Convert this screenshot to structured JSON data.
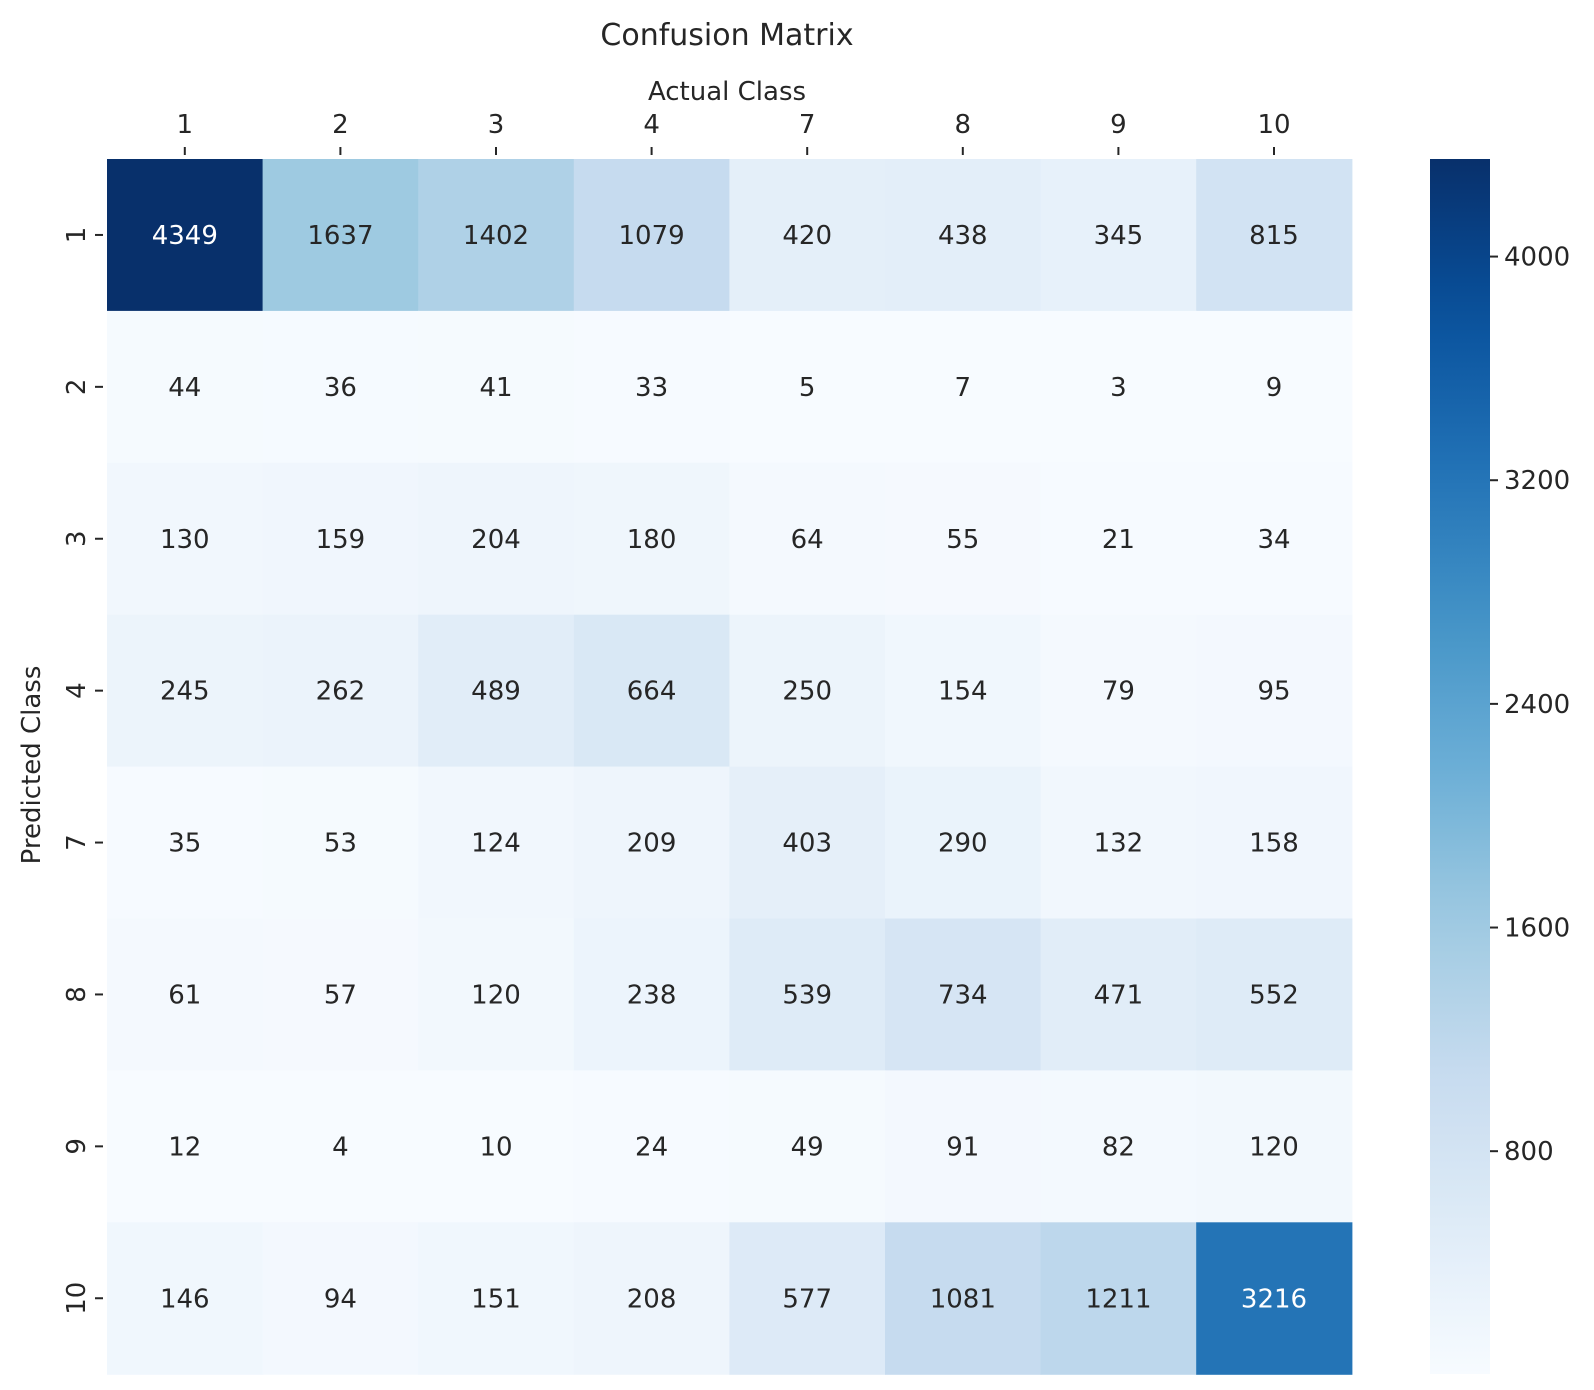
{
  "chart_data": {
    "type": "heatmap",
    "title": "Confusion Matrix",
    "xlabel": "Actual Class",
    "ylabel": "Predicted Class",
    "x_categories": [
      "1",
      "2",
      "3",
      "4",
      "7",
      "8",
      "9",
      "10"
    ],
    "y_categories": [
      "1",
      "2",
      "3",
      "4",
      "7",
      "8",
      "9",
      "10"
    ],
    "values": [
      [
        4349,
        1637,
        1402,
        1079,
        420,
        438,
        345,
        815
      ],
      [
        44,
        36,
        41,
        33,
        5,
        7,
        3,
        9
      ],
      [
        130,
        159,
        204,
        180,
        64,
        55,
        21,
        34
      ],
      [
        245,
        262,
        489,
        664,
        250,
        154,
        79,
        95
      ],
      [
        35,
        53,
        124,
        209,
        403,
        290,
        132,
        158
      ],
      [
        61,
        57,
        120,
        238,
        539,
        734,
        471,
        552
      ],
      [
        12,
        4,
        10,
        24,
        49,
        91,
        82,
        120
      ],
      [
        146,
        94,
        151,
        208,
        577,
        1081,
        1211,
        3216
      ]
    ],
    "colormap": "Blues",
    "colorbar": {
      "range": [
        3,
        4349
      ],
      "ticks": [
        800,
        1600,
        2400,
        3200,
        4000
      ],
      "tick_labels": [
        "800",
        "1600",
        "2400",
        "3200",
        "4000"
      ]
    },
    "x_axis_position": "top",
    "grid": false,
    "legend": "colorbar-right"
  }
}
